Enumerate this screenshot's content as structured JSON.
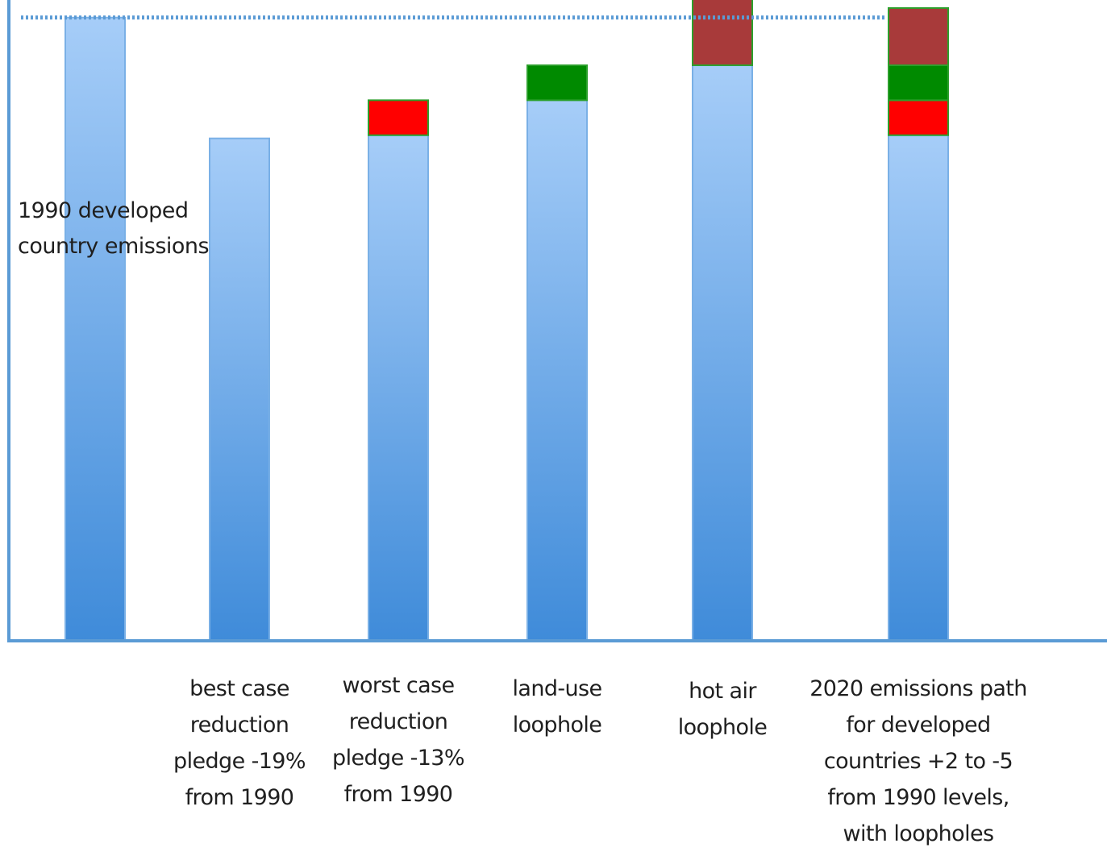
{
  "chart_data": {
    "type": "bar",
    "stacked": true,
    "title": "",
    "xlabel": "",
    "ylabel": "",
    "ylim": [
      0,
      100
    ],
    "grid": false,
    "legend": "none",
    "reference_line": {
      "value": 98,
      "label_lines": [
        "1990 developed",
        "country emissions"
      ],
      "color": "#5b9bd5"
    },
    "categories": [
      [],
      [
        "best case",
        "reduction",
        "pledge -19%",
        "from 1990"
      ],
      [
        "worst case",
        "reduction",
        "pledge -13%",
        "from 1990"
      ],
      [
        "land-use",
        "loophole"
      ],
      [
        "hot air",
        "loophole"
      ],
      [
        "2020 emissions path",
        "for developed",
        "countries +2 to -5",
        "from 1990 levels,",
        "with loopholes"
      ]
    ],
    "series": [
      {
        "key": "base",
        "color": "#5b9bd5",
        "values": [
          98,
          79,
          79.5,
          85,
          90.5,
          79.5
        ]
      },
      {
        "key": "red",
        "color": "#ff0000",
        "values": [
          0,
          0,
          5.5,
          0,
          0,
          5.5
        ]
      },
      {
        "key": "green",
        "color": "#008a00",
        "values": [
          0,
          0,
          0,
          5.5,
          0,
          5.5
        ]
      },
      {
        "key": "darkred",
        "color": "#a83a3a",
        "values": [
          0,
          0,
          0,
          0,
          10.5,
          9
        ]
      }
    ],
    "colors": {
      "axis": "#5b9bd5",
      "bar_top": "#a6cdf8",
      "bar_bottom": "#3f8bd9",
      "separator": "#7ab0e6",
      "stack_border": "#2ca02c"
    }
  }
}
